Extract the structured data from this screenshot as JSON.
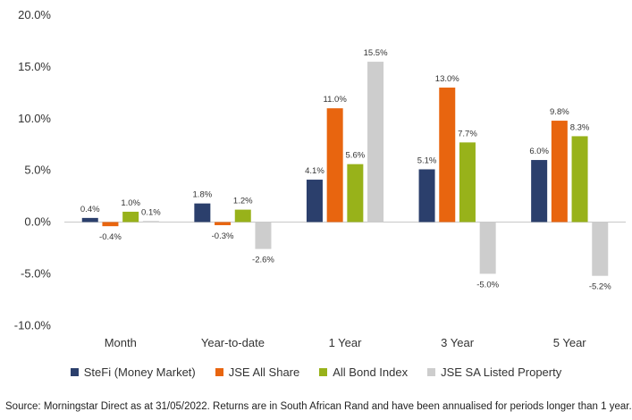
{
  "chart_data": {
    "type": "bar",
    "categories": [
      "Month",
      "Year-to-date",
      "1 Year",
      "3 Year",
      "5 Year"
    ],
    "series": [
      {
        "name": "SteFi (Money Market)",
        "color": "#2b3f6c",
        "values": [
          0.4,
          1.8,
          4.1,
          5.1,
          6.0
        ]
      },
      {
        "name": "JSE All Share",
        "color": "#e8650f",
        "values": [
          -0.4,
          -0.3,
          11.0,
          13.0,
          9.8
        ]
      },
      {
        "name": "All Bond Index",
        "color": "#98b21a",
        "values": [
          1.0,
          1.2,
          5.6,
          7.7,
          8.3
        ]
      },
      {
        "name": "JSE SA Listed Property",
        "color": "#cdcdcd",
        "values": [
          0.1,
          -2.6,
          15.5,
          -5.0,
          -5.2
        ]
      }
    ],
    "ylim": [
      -10,
      20
    ],
    "yticks": [
      -10,
      -5,
      0,
      5,
      10,
      15,
      20
    ],
    "ytick_labels": [
      "-10.0%",
      "-5.0%",
      "0.0%",
      "5.0%",
      "10.0%",
      "15.0%",
      "20.0%"
    ],
    "value_suffix": "%",
    "grid": false,
    "legend_position": "bottom"
  },
  "source_note": "Source: Morningstar Direct as at 31/05/2022. Returns are in South African Rand and have been annualised for periods longer than 1 year."
}
